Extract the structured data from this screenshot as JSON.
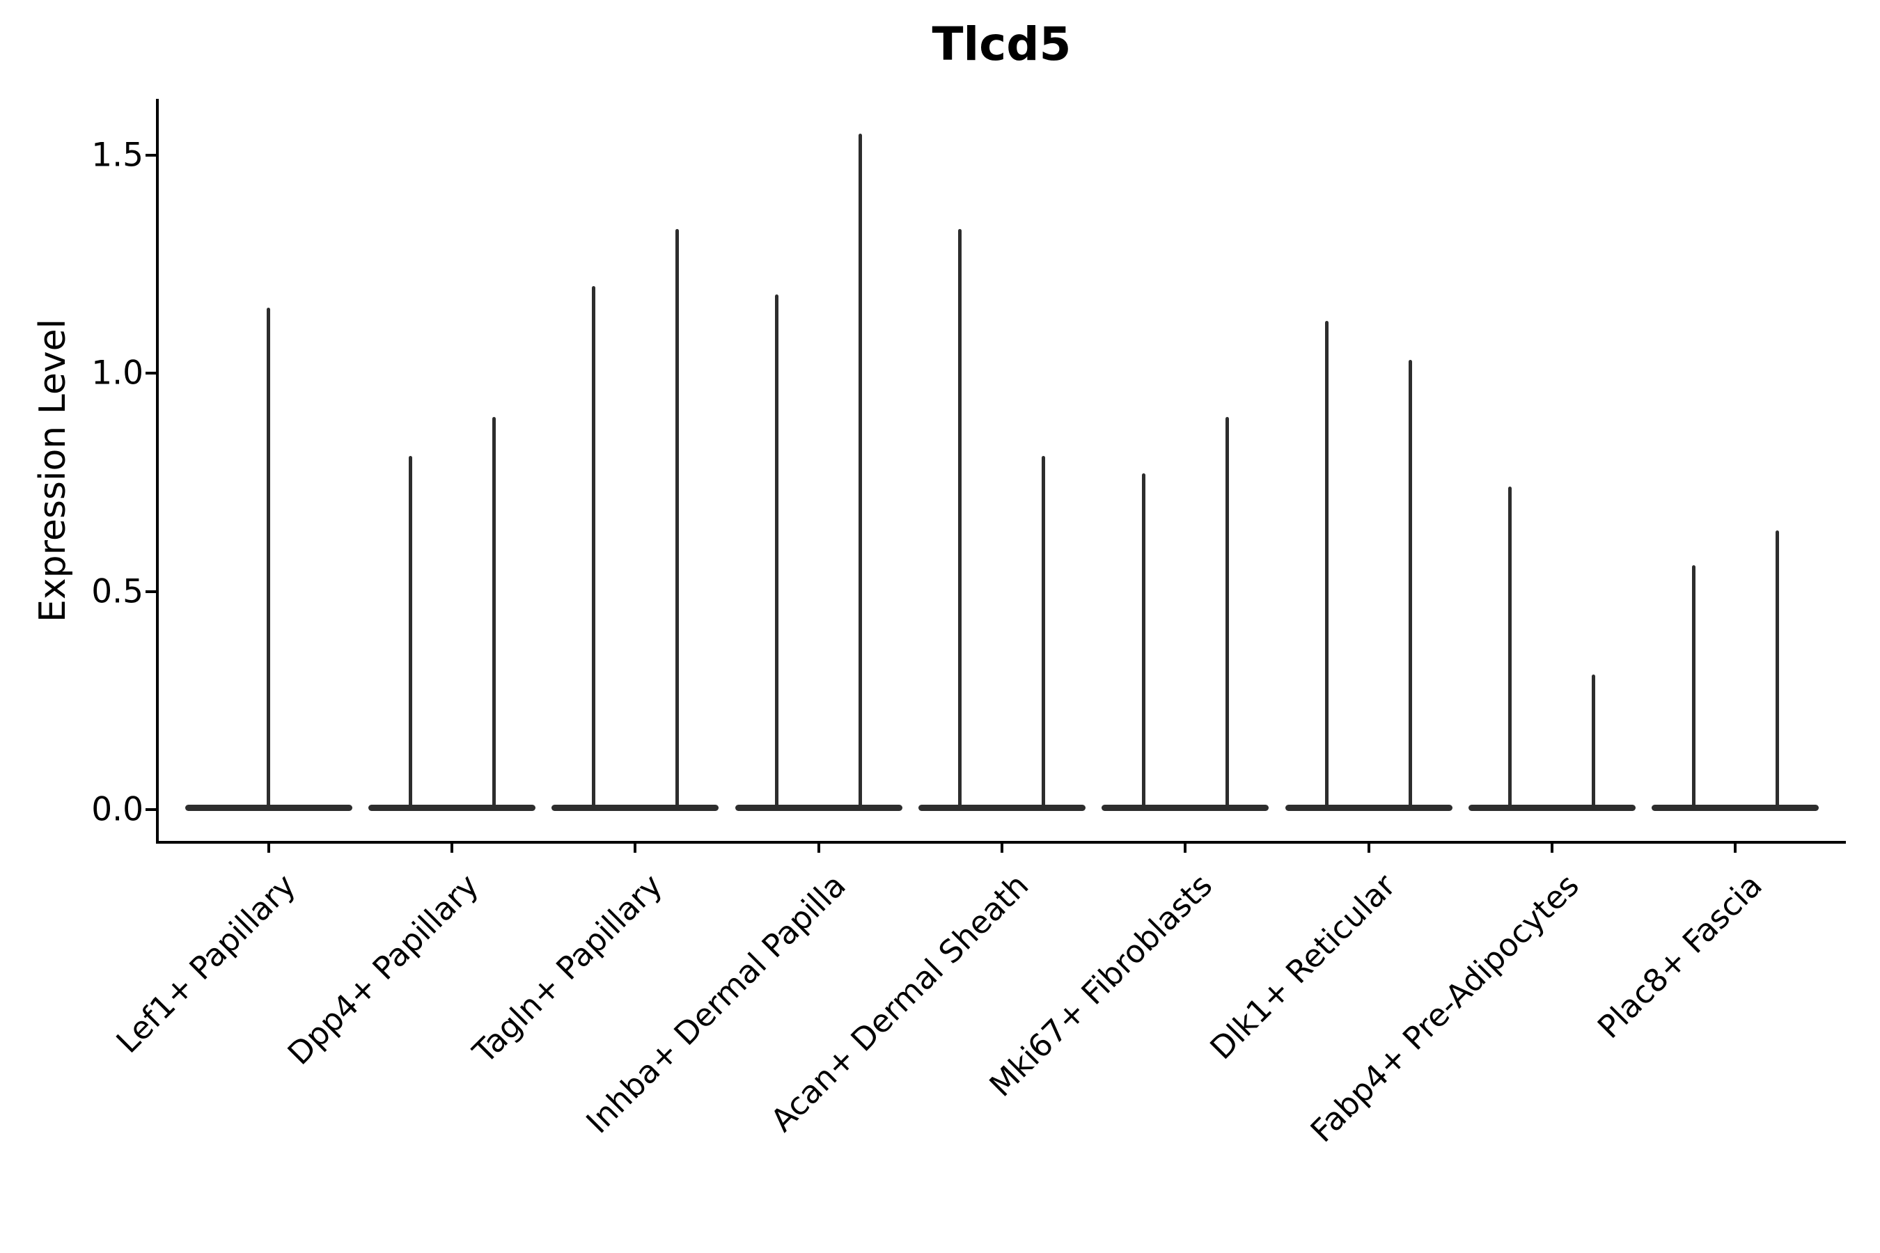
{
  "title": "Tlcd5",
  "y_axis_label": "Expression Level",
  "colors": {
    "violin": "#2d2d2d",
    "axis": "#000000",
    "text": "#000000",
    "background": "#ffffff"
  },
  "chart_data": {
    "type": "violin",
    "title": "Tlcd5",
    "xlabel": "",
    "ylabel": "Expression Level",
    "ylim": [
      0,
      1.63
    ],
    "yticks": [
      0.0,
      0.5,
      1.0,
      1.5
    ],
    "ytick_labels": [
      "0.0",
      "0.5",
      "1.0",
      "1.5"
    ],
    "grid": false,
    "legend": "none",
    "x_tick_label_rotation_deg": 45,
    "categories": [
      "Lef1+ Papillary",
      "Dpp4+ Papillary",
      "Tagln+ Papillary",
      "Inhba+ Dermal Papilla",
      "Acan+ Dermal Sheath",
      "Mki67+ Fibroblasts",
      "Dlk1+ Reticular",
      "Fabp4+ Pre-Adipocytes",
      "Plac8+ Fascia"
    ],
    "distribution_note": "Each violin is collapsed to a flat band at expression 0 with narrow density spikes reaching the maximum expression values listed below.",
    "violins": [
      {
        "category": "Lef1+ Papillary",
        "baseline_value": 0,
        "spike_maxima": [
          1.15
        ]
      },
      {
        "category": "Dpp4+ Papillary",
        "baseline_value": 0,
        "spike_maxima": [
          0.81,
          0.9
        ]
      },
      {
        "category": "Tagln+ Papillary",
        "baseline_value": 0,
        "spike_maxima": [
          1.2,
          1.33
        ]
      },
      {
        "category": "Inhba+ Dermal Papilla",
        "baseline_value": 0,
        "spike_maxima": [
          1.18,
          1.55
        ]
      },
      {
        "category": "Acan+ Dermal Sheath",
        "baseline_value": 0,
        "spike_maxima": [
          1.33,
          0.81
        ]
      },
      {
        "category": "Mki67+ Fibroblasts",
        "baseline_value": 0,
        "spike_maxima": [
          0.77,
          0.9
        ]
      },
      {
        "category": "Dlk1+ Reticular",
        "baseline_value": 0,
        "spike_maxima": [
          1.12,
          1.03
        ]
      },
      {
        "category": "Fabp4+ Pre-Adipocytes",
        "baseline_value": 0,
        "spike_maxima": [
          0.74,
          0.31
        ]
      },
      {
        "category": "Plac8+ Fascia",
        "baseline_value": 0,
        "spike_maxima": [
          0.56,
          0.64
        ]
      }
    ]
  }
}
